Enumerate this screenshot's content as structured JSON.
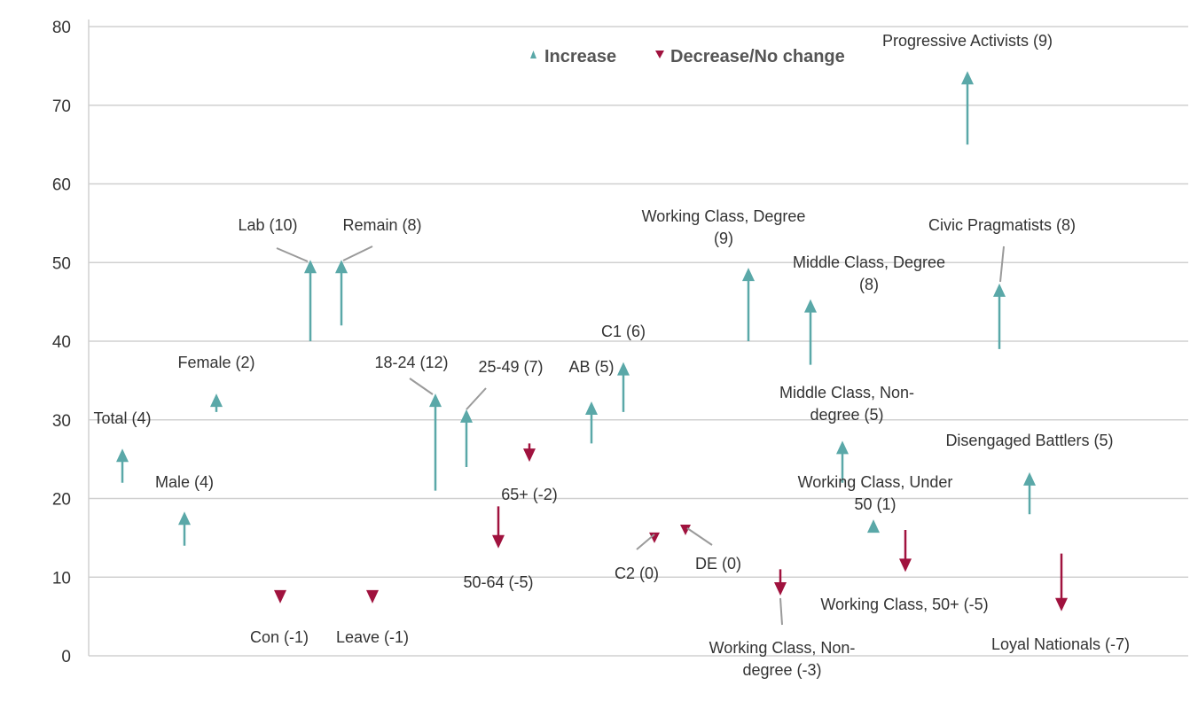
{
  "chart_data": {
    "type": "scatter",
    "title": "",
    "xlabel": "",
    "ylabel": "",
    "ylim": [
      0,
      80
    ],
    "yticks": [
      "0",
      "10",
      "20",
      "30",
      "40",
      "50",
      "60",
      "70",
      "80"
    ],
    "grid": true,
    "legend": {
      "placement": "top-center",
      "items": [
        {
          "name": "Increase",
          "color": "#5aa8a8",
          "marker": "triangle-up"
        },
        {
          "name": "Decrease/No change",
          "color": "#a0123e",
          "marker": "triangle-down"
        }
      ]
    },
    "colors": {
      "increase": "#5aa8a8",
      "decrease": "#a0123e",
      "grid": "#d0d0d0"
    },
    "segments": [
      {
        "lines": [
          "Total (4)"
        ],
        "from": 22,
        "to": 26
      },
      {
        "lines": [
          "Female (2)"
        ],
        "from": 31,
        "to": 33
      },
      {
        "lines": [
          "Male (4)"
        ],
        "from": 14,
        "to": 18
      },
      {
        "lines": [
          "Con (-1)"
        ],
        "from": 8,
        "to": 7
      },
      {
        "lines": [
          "Lab (10)"
        ],
        "from": 40,
        "to": 50
      },
      {
        "lines": [
          "Remain (8)"
        ],
        "from": 42,
        "to": 50
      },
      {
        "lines": [
          "Leave (-1)"
        ],
        "from": 8,
        "to": 7
      },
      {
        "lines": [
          "18-24 (12)"
        ],
        "from": 21,
        "to": 33
      },
      {
        "lines": [
          "25-49 (7)"
        ],
        "from": 24,
        "to": 31
      },
      {
        "lines": [
          "50-64 (-5)"
        ],
        "from": 19,
        "to": 14
      },
      {
        "lines": [
          "65+ (-2)"
        ],
        "from": 27,
        "to": 25
      },
      {
        "lines": [
          "AB (5)"
        ],
        "from": 27,
        "to": 32
      },
      {
        "lines": [
          "C1 (6)"
        ],
        "from": 31,
        "to": 37
      },
      {
        "lines": [
          "C2 (0)"
        ],
        "from": 15,
        "to": 15
      },
      {
        "lines": [
          "DE (0)"
        ],
        "from": 16,
        "to": 16
      },
      {
        "lines": [
          "Working Class, Degree",
          "(9)"
        ],
        "from": 40,
        "to": 49
      },
      {
        "lines": [
          "Working Class, Non-",
          "degree (-3)"
        ],
        "from": 11,
        "to": 8
      },
      {
        "lines": [
          "Middle Class, Degree",
          "(8)"
        ],
        "from": 37,
        "to": 45
      },
      {
        "lines": [
          "Middle Class, Non-",
          "degree (5)"
        ],
        "from": 22,
        "to": 27
      },
      {
        "lines": [
          "Working Class, Under",
          "50 (1)"
        ],
        "from": 16,
        "to": 17
      },
      {
        "lines": [
          "Working Class, 50+ (-5)"
        ],
        "from": 16,
        "to": 11
      },
      {
        "lines": [
          "Progressive Activists (9)"
        ],
        "from": 65,
        "to": 74
      },
      {
        "lines": [
          "Civic Pragmatists (8)"
        ],
        "from": 39,
        "to": 47
      },
      {
        "lines": [
          "Disengaged Battlers (5)"
        ],
        "from": 18,
        "to": 23
      },
      {
        "lines": [
          "Loyal Nationals (-7)"
        ],
        "from": 13,
        "to": 6
      }
    ]
  }
}
